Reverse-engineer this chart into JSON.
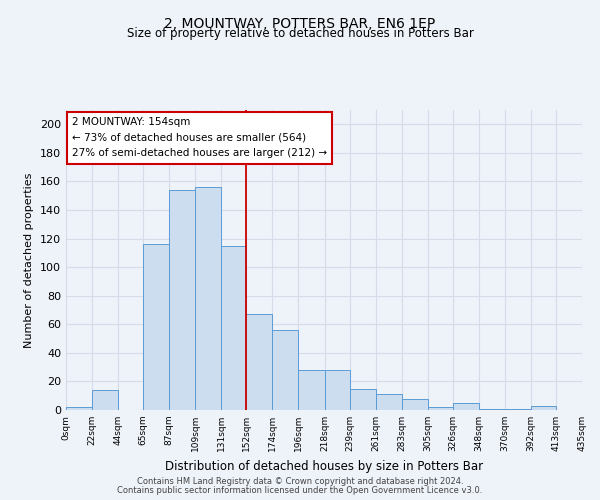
{
  "title": "2, MOUNTWAY, POTTERS BAR, EN6 1EP",
  "subtitle": "Size of property relative to detached houses in Potters Bar",
  "xlabel": "Distribution of detached houses by size in Potters Bar",
  "ylabel": "Number of detached properties",
  "bar_edges": [
    0,
    22,
    44,
    65,
    87,
    109,
    131,
    152,
    174,
    196,
    218,
    239,
    261,
    283,
    305,
    326,
    348,
    370,
    392,
    413,
    435
  ],
  "bar_heights": [
    2,
    14,
    0,
    116,
    154,
    156,
    115,
    67,
    56,
    28,
    28,
    15,
    11,
    8,
    2,
    5,
    1,
    1,
    3,
    0
  ],
  "bar_color": "#ccddf0",
  "bar_edge_color": "#5b9bd5",
  "tick_labels": [
    "0sqm",
    "22sqm",
    "44sqm",
    "65sqm",
    "87sqm",
    "109sqm",
    "131sqm",
    "152sqm",
    "174sqm",
    "196sqm",
    "218sqm",
    "239sqm",
    "261sqm",
    "283sqm",
    "305sqm",
    "326sqm",
    "348sqm",
    "370sqm",
    "392sqm",
    "413sqm",
    "435sqm"
  ],
  "vline_x": 152,
  "vline_color": "#cc0000",
  "ylim": [
    0,
    210
  ],
  "yticks": [
    0,
    20,
    40,
    60,
    80,
    100,
    120,
    140,
    160,
    180,
    200
  ],
  "annotation_title": "2 MOUNTWAY: 154sqm",
  "annotation_line1": "← 73% of detached houses are smaller (564)",
  "annotation_line2": "27% of semi-detached houses are larger (212) →",
  "annotation_box_color": "#cc0000",
  "footer_line1": "Contains HM Land Registry data © Crown copyright and database right 2024.",
  "footer_line2": "Contains public sector information licensed under the Open Government Licence v3.0.",
  "grid_color": "#d5dce8",
  "background_color": "#eef2f9"
}
